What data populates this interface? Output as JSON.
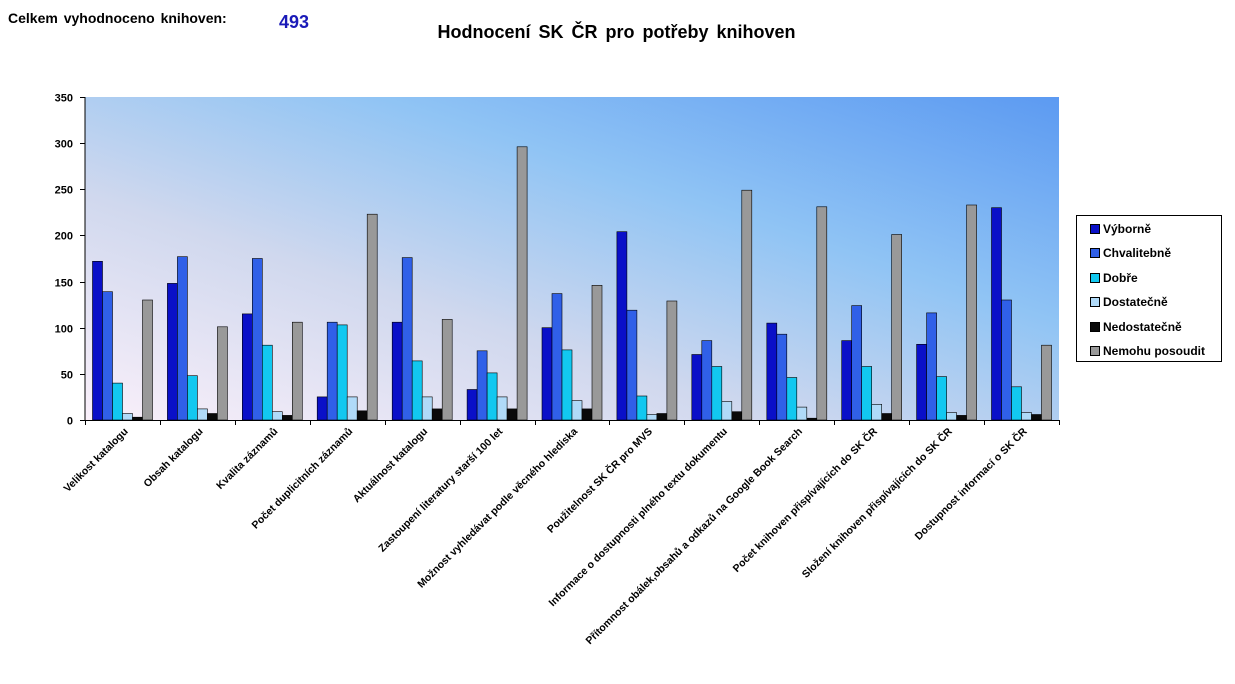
{
  "header": {
    "total_label": "Celkem vyhodnoceno knihoven:",
    "total_value": "493"
  },
  "colors": {
    "plot_bg_left": "#f8eefa",
    "plot_bg_right": "#5c9cf2",
    "axis": "#000000"
  },
  "chart_data": {
    "type": "bar",
    "title": "Hodnocení SK ČR pro potřeby knihoven",
    "xlabel": "",
    "ylabel": "",
    "ylim": [
      0,
      350
    ],
    "yticks": [
      0,
      50,
      100,
      150,
      200,
      250,
      300,
      350
    ],
    "legend_position": "right",
    "categories": [
      "Velikost katalogu",
      "Obsah katalogu",
      "Kvalita záznamů",
      "Počet duplicitních záznamů",
      "Aktuálnost katalogu",
      "Zastoupení literatury starší 100 let",
      "Možnost vyhledávat podle věcného hlediska",
      "Použitelnost SK ČR pro MVS",
      "Informace o dostupnosti plného textu dokumentu",
      "Přítomnost obálek,obsahů a odkazů na Google Book Search",
      "Počet knihoven přispívajících do SK ČR",
      "Složení knihoven přispívajících do SK ČR",
      "Dostupnost informací o SK ČR"
    ],
    "series": [
      {
        "name": "Výborně",
        "color": "#0a10c8",
        "values": [
          172,
          148,
          115,
          25,
          106,
          33,
          100,
          204,
          71,
          105,
          86,
          82,
          230
        ]
      },
      {
        "name": "Chvalitebně",
        "color": "#3060e8",
        "values": [
          139,
          177,
          175,
          106,
          176,
          75,
          137,
          119,
          86,
          93,
          124,
          116,
          130
        ]
      },
      {
        "name": "Dobře",
        "color": "#12c8f0",
        "values": [
          40,
          48,
          81,
          103,
          64,
          51,
          76,
          26,
          58,
          46,
          58,
          47,
          36
        ]
      },
      {
        "name": "Dostatečně",
        "color": "#b0daf8",
        "values": [
          7,
          12,
          9,
          25,
          25,
          25,
          21,
          6,
          20,
          14,
          17,
          8,
          8
        ]
      },
      {
        "name": "Nedostatečně",
        "color": "#0a0a0a",
        "values": [
          3,
          7,
          5,
          10,
          12,
          12,
          12,
          7,
          9,
          2,
          7,
          5,
          6
        ]
      },
      {
        "name": "Nemohu posoudit",
        "color": "#999999",
        "values": [
          130,
          101,
          106,
          223,
          109,
          296,
          146,
          129,
          249,
          231,
          201,
          233,
          81
        ]
      }
    ]
  }
}
